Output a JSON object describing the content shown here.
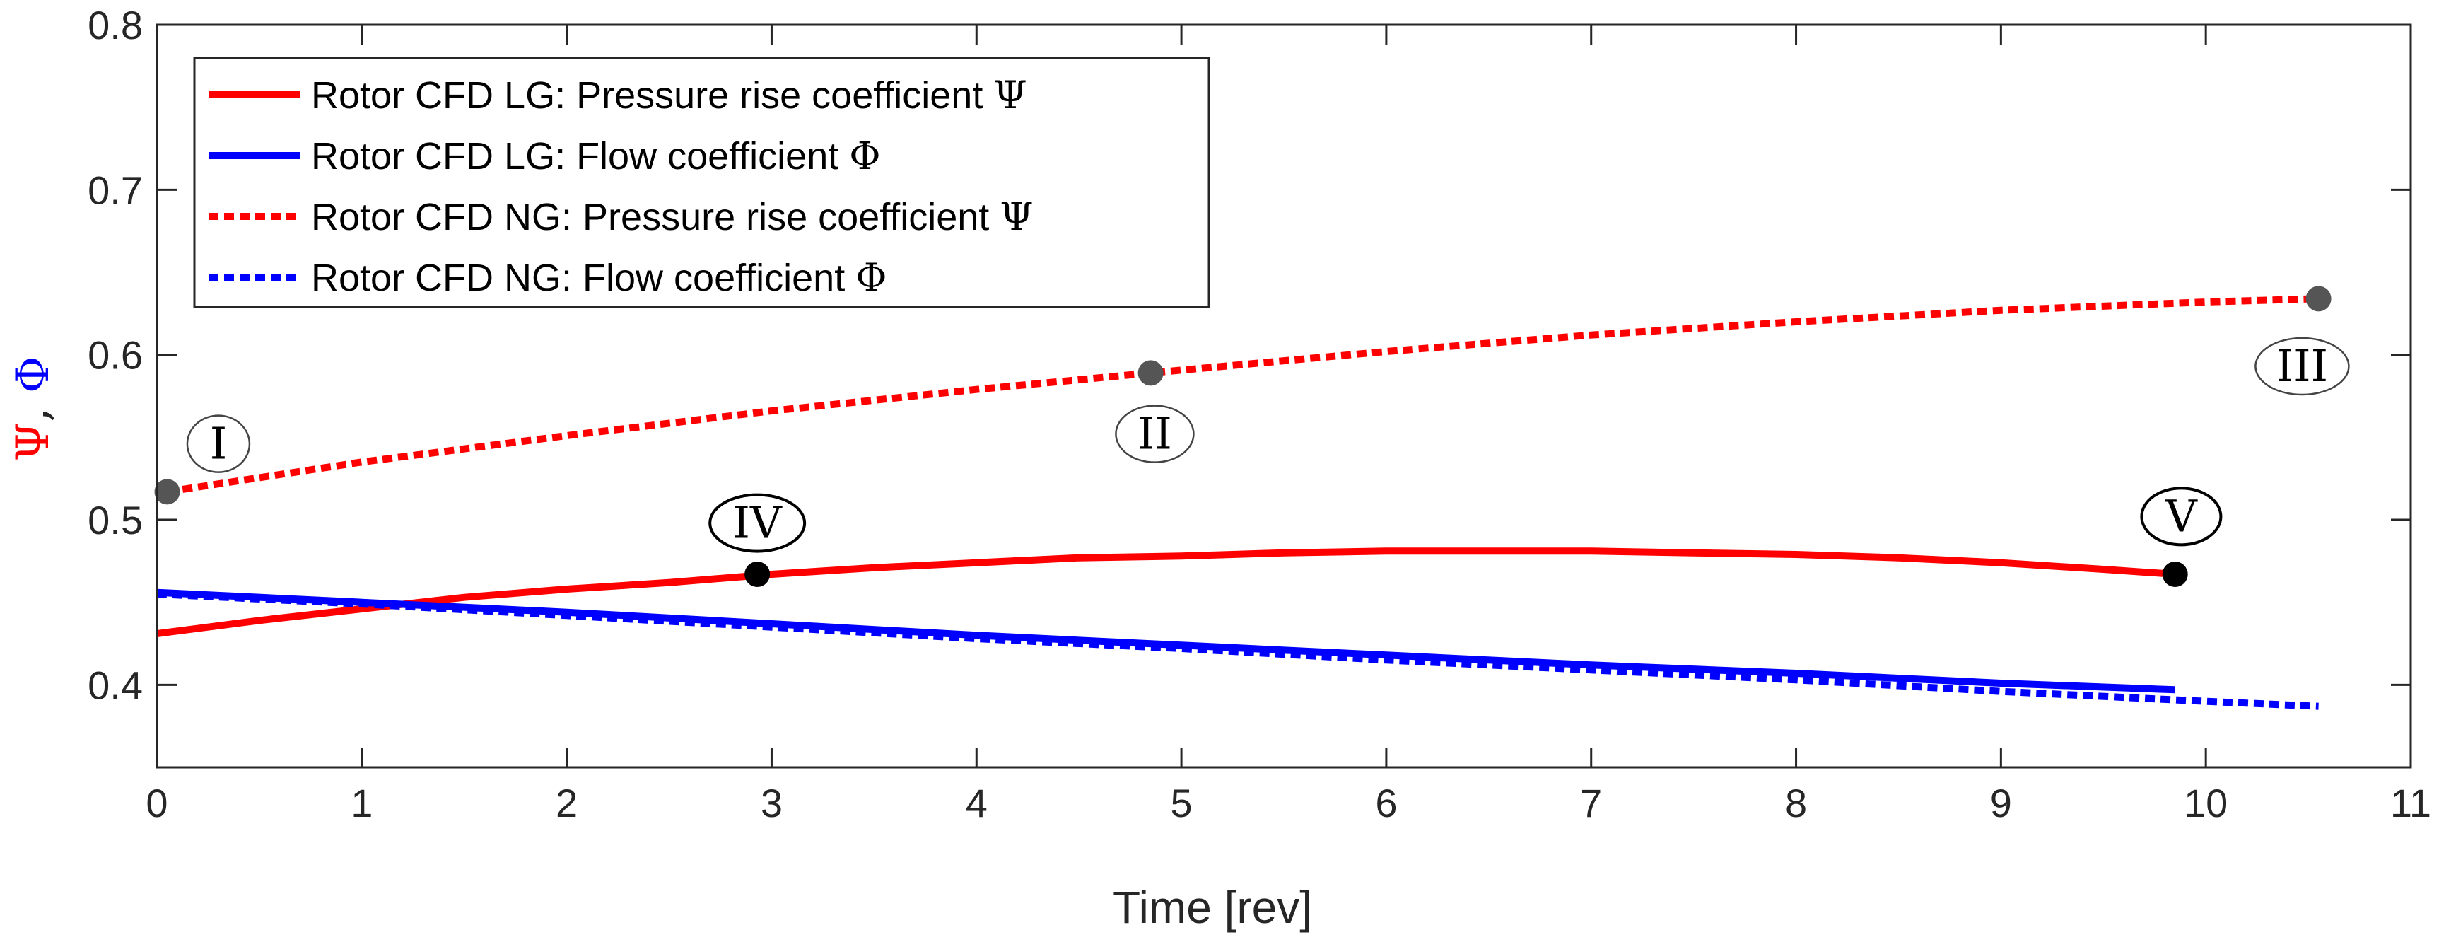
{
  "chart_data": {
    "type": "line",
    "xlabel": "Time [rev]",
    "ylabel": {
      "psi": "Ψ",
      "sep": ", ",
      "phi": "Φ"
    },
    "xlim": [
      0,
      11
    ],
    "ylim": [
      0.35,
      0.8
    ],
    "xticks": [
      "0",
      "1",
      "2",
      "3",
      "4",
      "5",
      "6",
      "7",
      "8",
      "9",
      "10",
      "11"
    ],
    "yticks": [
      "0.4",
      "0.5",
      "0.6",
      "0.7",
      "0.8"
    ],
    "grid": false,
    "legend_position": "top-left",
    "series": [
      {
        "name": "Rotor CFD LG: Pressure rise coefficient",
        "symbol": "Ψ",
        "color": "#ff0000",
        "style": "solid",
        "x": [
          0,
          0.5,
          1,
          1.5,
          2,
          2.5,
          3,
          3.5,
          4,
          4.5,
          5,
          5.5,
          6,
          6.5,
          7,
          7.5,
          8,
          8.5,
          9,
          9.5,
          9.85
        ],
        "y": [
          0.431,
          0.439,
          0.446,
          0.453,
          0.458,
          0.462,
          0.467,
          0.471,
          0.474,
          0.477,
          0.478,
          0.48,
          0.481,
          0.481,
          0.481,
          0.48,
          0.479,
          0.477,
          0.474,
          0.47,
          0.467
        ]
      },
      {
        "name": "Rotor CFD LG: Flow coefficient",
        "symbol": "Φ",
        "color": "#0000ff",
        "style": "solid",
        "x": [
          0,
          1,
          2,
          3,
          4,
          5,
          6,
          7,
          8,
          9,
          9.85
        ],
        "y": [
          0.456,
          0.45,
          0.444,
          0.437,
          0.43,
          0.424,
          0.418,
          0.412,
          0.407,
          0.401,
          0.397
        ]
      },
      {
        "name": "Rotor CFD NG: Pressure rise coefficient",
        "symbol": "Ψ",
        "color": "#ff0000",
        "style": "dotted",
        "x": [
          0.05,
          1,
          2,
          3,
          4,
          4.85,
          6,
          7,
          8,
          9,
          10,
          10.55
        ],
        "y": [
          0.517,
          0.535,
          0.551,
          0.566,
          0.579,
          0.589,
          0.602,
          0.612,
          0.62,
          0.627,
          0.632,
          0.634
        ]
      },
      {
        "name": "Rotor CFD NG: Flow coefficient",
        "symbol": "Φ",
        "color": "#0000ff",
        "style": "dotted",
        "x": [
          0,
          1,
          2,
          3,
          4,
          5,
          6,
          7,
          8,
          9,
          10,
          10.55
        ],
        "y": [
          0.455,
          0.449,
          0.442,
          0.435,
          0.428,
          0.422,
          0.415,
          0.409,
          0.403,
          0.396,
          0.39,
          0.387
        ]
      }
    ],
    "markers": [
      {
        "label": "I",
        "x": 0.05,
        "y": 0.517,
        "color": "#555555",
        "circled": false,
        "label_dx": 0.25,
        "label_dy": 0.029
      },
      {
        "label": "II",
        "x": 4.85,
        "y": 0.589,
        "color": "#555555",
        "circled": false,
        "label_dx": 0.02,
        "label_dy": -0.037
      },
      {
        "label": "III",
        "x": 10.55,
        "y": 0.634,
        "color": "#555555",
        "circled": false,
        "label_dx": -0.08,
        "label_dy": -0.041
      },
      {
        "label": "IV",
        "x": 2.93,
        "y": 0.467,
        "color": "#000000",
        "circled": true,
        "label_dx": 0.0,
        "label_dy": 0.031
      },
      {
        "label": "V",
        "x": 9.85,
        "y": 0.467,
        "color": "#000000",
        "circled": true,
        "label_dx": 0.03,
        "label_dy": 0.035
      }
    ]
  }
}
